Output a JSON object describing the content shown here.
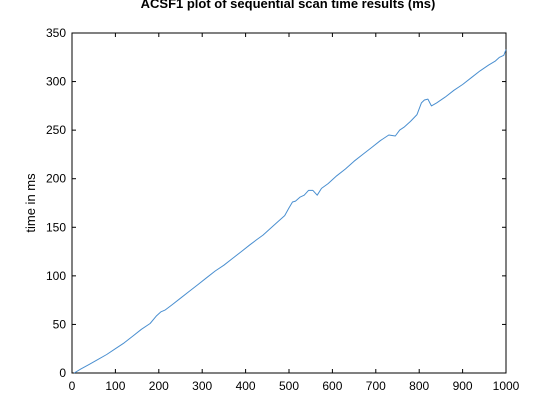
{
  "chart_data": {
    "type": "line",
    "title": "ACSF1 plot of sequential scan time results (ms)",
    "xlabel": "",
    "ylabel": "time in ms",
    "xlim": [
      0,
      1000
    ],
    "ylim": [
      0,
      350
    ],
    "x_ticks": [
      0,
      100,
      200,
      300,
      400,
      500,
      600,
      700,
      800,
      900,
      1000
    ],
    "y_ticks": [
      0,
      50,
      100,
      150,
      200,
      250,
      300,
      350
    ],
    "x_tick_labels": [
      "0",
      "100",
      "200",
      "300",
      "400",
      "500",
      "600",
      "700",
      "800",
      "900",
      "1000"
    ],
    "y_tick_labels": [
      "0",
      "50",
      "100",
      "150",
      "200",
      "250",
      "300",
      "350"
    ],
    "grid": false,
    "series": [
      {
        "color": "#4a8fd0",
        "x": [
          5,
          20,
          40,
          60,
          80,
          100,
          120,
          140,
          160,
          180,
          195,
          205,
          215,
          230,
          250,
          270,
          290,
          310,
          330,
          350,
          370,
          390,
          410,
          425,
          440,
          455,
          470,
          490,
          500,
          508,
          515,
          525,
          535,
          545,
          555,
          565,
          575,
          590,
          610,
          630,
          650,
          670,
          690,
          710,
          730,
          745,
          755,
          765,
          780,
          795,
          805,
          812,
          820,
          828,
          840,
          860,
          880,
          900,
          920,
          940,
          960,
          975,
          985,
          995,
          1000
        ],
        "y": [
          0,
          4,
          9,
          14,
          19,
          25,
          31,
          38,
          45,
          51,
          59,
          63,
          65,
          70,
          77,
          84,
          91,
          98,
          105,
          111,
          118,
          125,
          132,
          137,
          142,
          148,
          154,
          162,
          170,
          176,
          177,
          181,
          183,
          188,
          188,
          183,
          190,
          195,
          203,
          210,
          218,
          225,
          232,
          239,
          245,
          244,
          250,
          253,
          259,
          266,
          278,
          281,
          282,
          275,
          278,
          284,
          291,
          297,
          304,
          311,
          317,
          321,
          325,
          327,
          333
        ]
      }
    ]
  }
}
